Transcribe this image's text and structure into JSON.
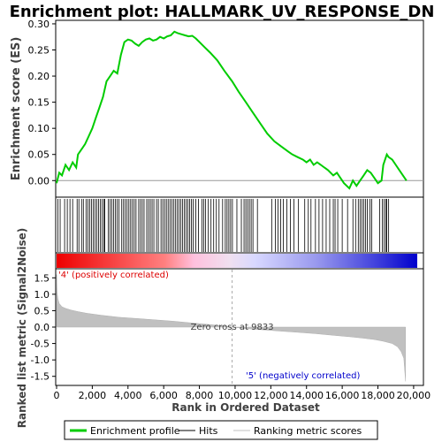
{
  "chart_data": {
    "type": "line",
    "title": "Enrichment plot: HALLMARK_UV_RESPONSE_DN",
    "top_panel": {
      "ylabel": "Enrichment score (ES)",
      "ylim": [
        -0.03,
        0.305
      ],
      "yticks": [
        "0.00",
        "0.05",
        "0.10",
        "0.15",
        "0.20",
        "0.25",
        "0.30"
      ],
      "ytick_values": [
        0.0,
        0.05,
        0.1,
        0.15,
        0.2,
        0.25,
        0.3
      ],
      "series": [
        {
          "name": "Enrichment profile",
          "color": "#00cc00",
          "x": [
            0,
            150,
            300,
            500,
            700,
            900,
            1100,
            1200,
            1400,
            1600,
            1800,
            2000,
            2200,
            2400,
            2600,
            2800,
            3000,
            3200,
            3400,
            3600,
            3800,
            4000,
            4200,
            4400,
            4600,
            4800,
            5000,
            5200,
            5400,
            5600,
            5800,
            6000,
            6200,
            6400,
            6600,
            6800,
            7000,
            7200,
            7400,
            7600,
            7800,
            8000,
            8300,
            8600,
            9000,
            9400,
            9833,
            10200,
            10600,
            11000,
            11400,
            11800,
            12200,
            12600,
            13000,
            13200,
            13500,
            13800,
            14000,
            14200,
            14400,
            14600,
            14800,
            15000,
            15200,
            15500,
            15700,
            15900,
            16100,
            16400,
            16600,
            16800,
            17000,
            17200,
            17400,
            17600,
            17800,
            18000,
            18200,
            18300,
            18400,
            18500,
            18600,
            18800,
            19000,
            19200,
            19400,
            19600
          ],
          "y": [
            -0.005,
            0.015,
            0.01,
            0.03,
            0.02,
            0.035,
            0.025,
            0.05,
            0.06,
            0.07,
            0.085,
            0.1,
            0.12,
            0.14,
            0.16,
            0.19,
            0.2,
            0.21,
            0.205,
            0.24,
            0.265,
            0.27,
            0.268,
            0.262,
            0.258,
            0.265,
            0.27,
            0.272,
            0.268,
            0.27,
            0.275,
            0.272,
            0.276,
            0.278,
            0.285,
            0.282,
            0.28,
            0.278,
            0.276,
            0.277,
            0.272,
            0.265,
            0.255,
            0.245,
            0.23,
            0.21,
            0.19,
            0.17,
            0.15,
            0.13,
            0.11,
            0.09,
            0.075,
            0.065,
            0.055,
            0.05,
            0.045,
            0.04,
            0.035,
            0.04,
            0.03,
            0.035,
            0.03,
            0.025,
            0.02,
            0.01,
            0.015,
            0.005,
            -0.005,
            -0.015,
            0.0,
            -0.01,
            0.0,
            0.01,
            0.02,
            0.015,
            0.005,
            -0.005,
            0.0,
            0.03,
            0.04,
            0.05,
            0.045,
            0.04,
            0.03,
            0.02,
            0.01,
            0.0
          ]
        }
      ]
    },
    "hits_panel": {
      "name": "Hits",
      "hit_ranks": [
        80,
        200,
        450,
        600,
        750,
        900,
        1150,
        1250,
        1400,
        1500,
        1650,
        1750,
        1850,
        1950,
        2050,
        2150,
        2250,
        2350,
        2450,
        2550,
        2650,
        2700,
        2900,
        3000,
        3100,
        3200,
        3300,
        3400,
        3500,
        3650,
        3750,
        3850,
        3950,
        4050,
        4150,
        4250,
        4350,
        4450,
        4600,
        4700,
        4800,
        4900,
        5050,
        5150,
        5250,
        5350,
        5450,
        5600,
        5700,
        5850,
        5950,
        6050,
        6150,
        6250,
        6350,
        6450,
        6550,
        6650,
        6750,
        6850,
        6950,
        7050,
        7150,
        7250,
        7350,
        7450,
        7550,
        7650,
        7800,
        7950,
        8150,
        8250,
        8350,
        8500,
        8650,
        8800,
        8950,
        9100,
        9300,
        9450,
        9550,
        9650,
        9750,
        9850,
        10100,
        10350,
        10500,
        10600,
        10700,
        10800,
        10900,
        11000,
        11250,
        12050,
        12250,
        12400,
        12550,
        12700,
        12900,
        13100,
        13300,
        13550,
        13900,
        14100,
        14250,
        14500,
        14700,
        14900,
        15100,
        15300,
        15500,
        15600,
        15750,
        16000,
        16300,
        16600,
        16750,
        16900,
        17000,
        17100,
        17200,
        17300,
        17400,
        17550,
        17650,
        18100,
        18250,
        18350,
        18450,
        18500,
        18600
      ]
    },
    "metric_panel": {
      "ylabel": "Ranked list metric (Signal2Noise)",
      "xlabel": "Rank in Ordered Dataset",
      "ylim": [
        -1.75,
        1.75
      ],
      "yticks": [
        "1.5",
        "1.0",
        "0.5",
        "0.0",
        "-0.5",
        "-1.0",
        "-1.5"
      ],
      "ytick_values": [
        1.5,
        1.0,
        0.5,
        0.0,
        -0.5,
        -1.0,
        -1.5
      ],
      "xlim": [
        0,
        20500
      ],
      "xticks": [
        "0",
        "2,000",
        "4,000",
        "6,000",
        "8,000",
        "10,000",
        "12,000",
        "14,000",
        "16,000",
        "18,000",
        "20,000"
      ],
      "xtick_values": [
        0,
        2000,
        4000,
        6000,
        8000,
        10000,
        12000,
        14000,
        16000,
        18000,
        20000
      ],
      "metric_x": [
        0,
        30,
        80,
        150,
        300,
        500,
        800,
        1200,
        1700,
        2500,
        3500,
        4500,
        5500,
        6500,
        7500,
        8500,
        9500,
        9833,
        10500,
        11500,
        12500,
        13500,
        14500,
        15500,
        16500,
        17200,
        17800,
        18300,
        18800,
        19100,
        19300,
        19450,
        19550
      ],
      "metric_y": [
        1.6,
        1.05,
        0.85,
        0.72,
        0.62,
        0.57,
        0.52,
        0.47,
        0.42,
        0.36,
        0.3,
        0.26,
        0.22,
        0.18,
        0.13,
        0.08,
        0.03,
        0.0,
        -0.04,
        -0.08,
        -0.12,
        -0.16,
        -0.2,
        -0.25,
        -0.3,
        -0.34,
        -0.38,
        -0.43,
        -0.5,
        -0.6,
        -0.75,
        -0.95,
        -1.65
      ],
      "zero_cross_label": "Zero cross at 9833",
      "zero_cross_value": 9833,
      "pos_label": "'4' (positively correlated)",
      "neg_label": "'5' (negatively correlated)"
    },
    "colors": {
      "profile": "#00cc00",
      "metric_fill": "#c0c0c0",
      "pos_label": "#dd0000",
      "neg_label": "#0000cc",
      "axis_text": "#000000",
      "label_text": "#404040"
    },
    "legend": {
      "placement": "bottom",
      "items": [
        {
          "label": "Enrichment profile",
          "color": "#00cc00"
        },
        {
          "label": "Hits",
          "color": "#000000"
        },
        {
          "label": "Ranking metric scores",
          "color": "#c0c0c0"
        }
      ]
    }
  }
}
